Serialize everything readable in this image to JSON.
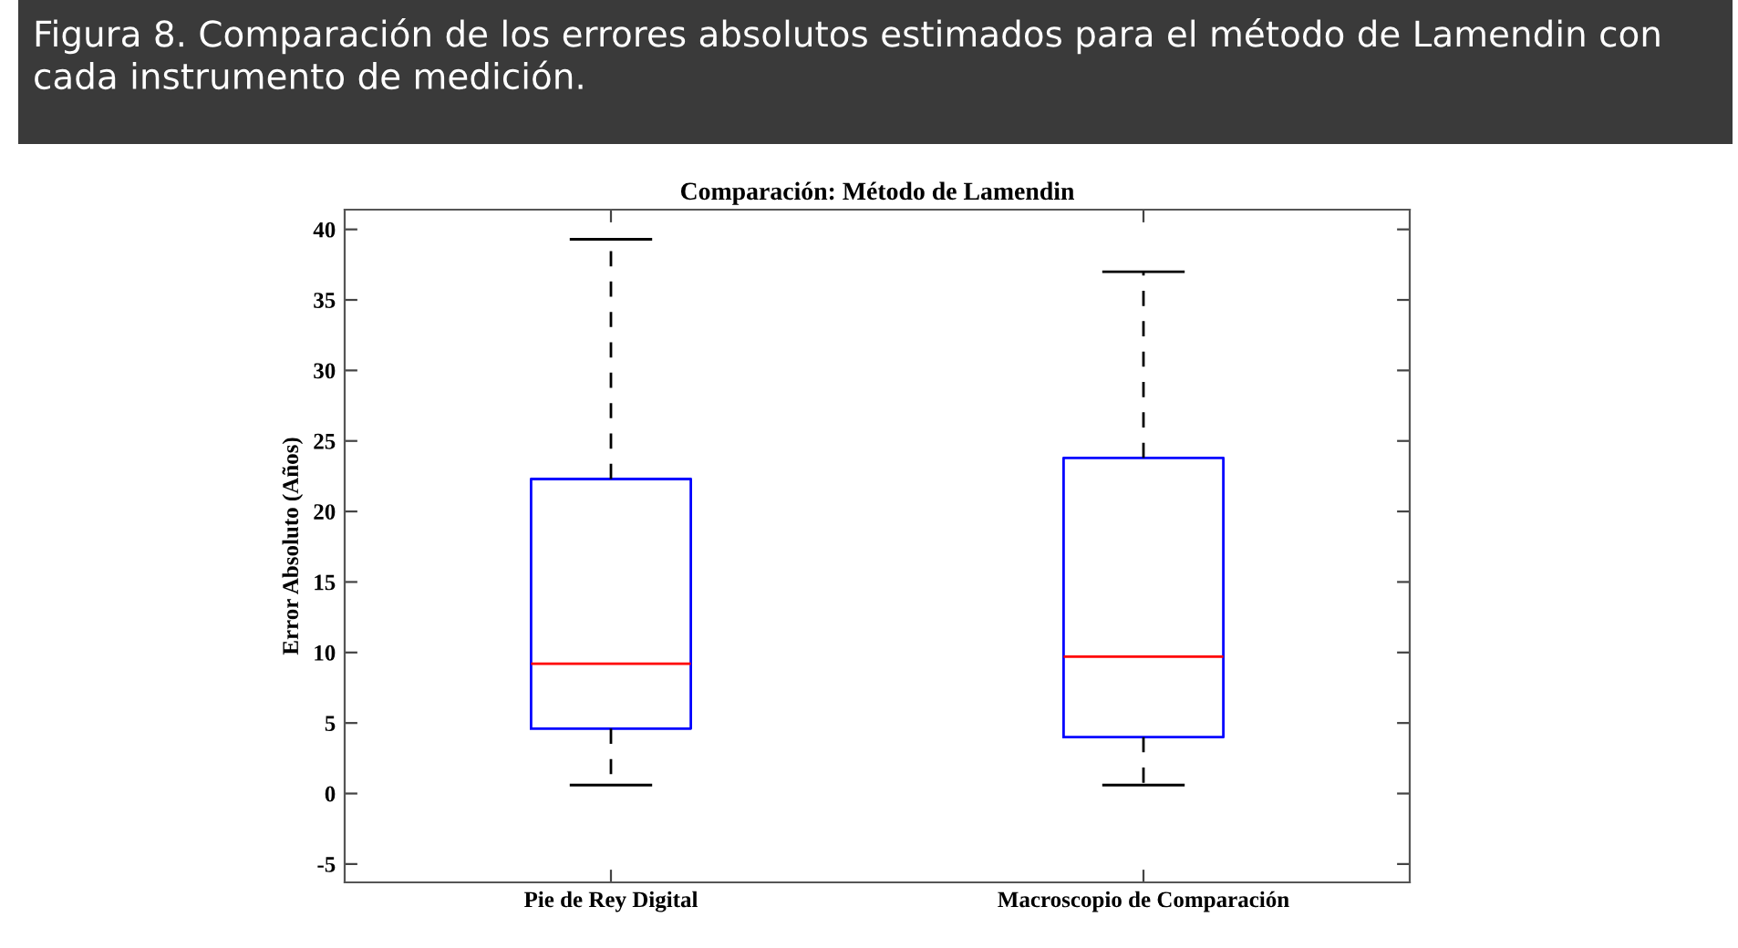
{
  "chart_data": {
    "type": "box",
    "title": "Comparación: Método de Lamendin",
    "ylabel": "Error Absoluto (Años)",
    "annotations": [
      "Figura 8. Comparación de los errores absolutos estimados para el método de Lamendin con cada instrumento de medición."
    ],
    "categories": [
      "Pie de Rey Digital",
      "Macroscopio de Comparación"
    ],
    "boxes": [
      {
        "low": 0.6,
        "q1": 4.6,
        "median": 9.2,
        "q3": 22.3,
        "high": 39.3
      },
      {
        "low": 0.6,
        "q1": 4.0,
        "median": 9.7,
        "q3": 23.8,
        "high": 37.0
      }
    ],
    "ylim": [
      -6.3,
      41.4
    ],
    "yticks": [
      -5,
      0,
      5,
      10,
      15,
      20,
      25,
      30,
      35,
      40
    ],
    "grid": false
  }
}
